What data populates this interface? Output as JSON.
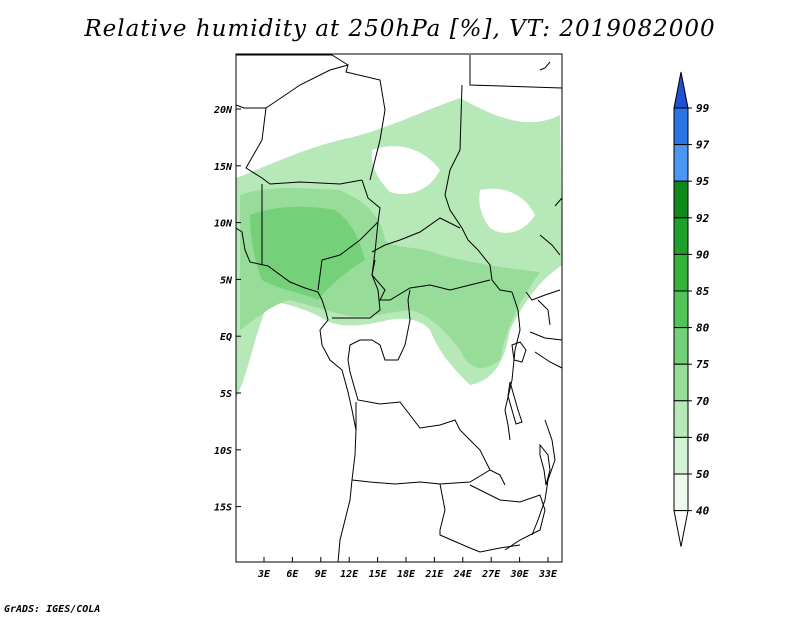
{
  "title": "Relative humidity at 250hPa [%], VT: 2019082000",
  "credit": "GrADS: IGES/COLA",
  "map": {
    "lat_labels": [
      "20N",
      "15N",
      "10N",
      "5N",
      "EQ",
      "5S",
      "10S",
      "15S"
    ],
    "lon_labels": [
      "3E",
      "6E",
      "9E",
      "12E",
      "15E",
      "18E",
      "21E",
      "24E",
      "27E",
      "30E",
      "33E"
    ]
  },
  "colorbar": {
    "labels": [
      "99",
      "97",
      "95",
      "92",
      "90",
      "85",
      "80",
      "75",
      "70",
      "60",
      "50",
      "40"
    ],
    "colors": [
      "#1f4fd2",
      "#2a74e6",
      "#4b97f3",
      "#0f8a1a",
      "#1fa02a",
      "#35b23a",
      "#52c457",
      "#74d079",
      "#97dc98",
      "#b7e8b8",
      "#d4f2d4",
      "#eefaee"
    ]
  }
}
